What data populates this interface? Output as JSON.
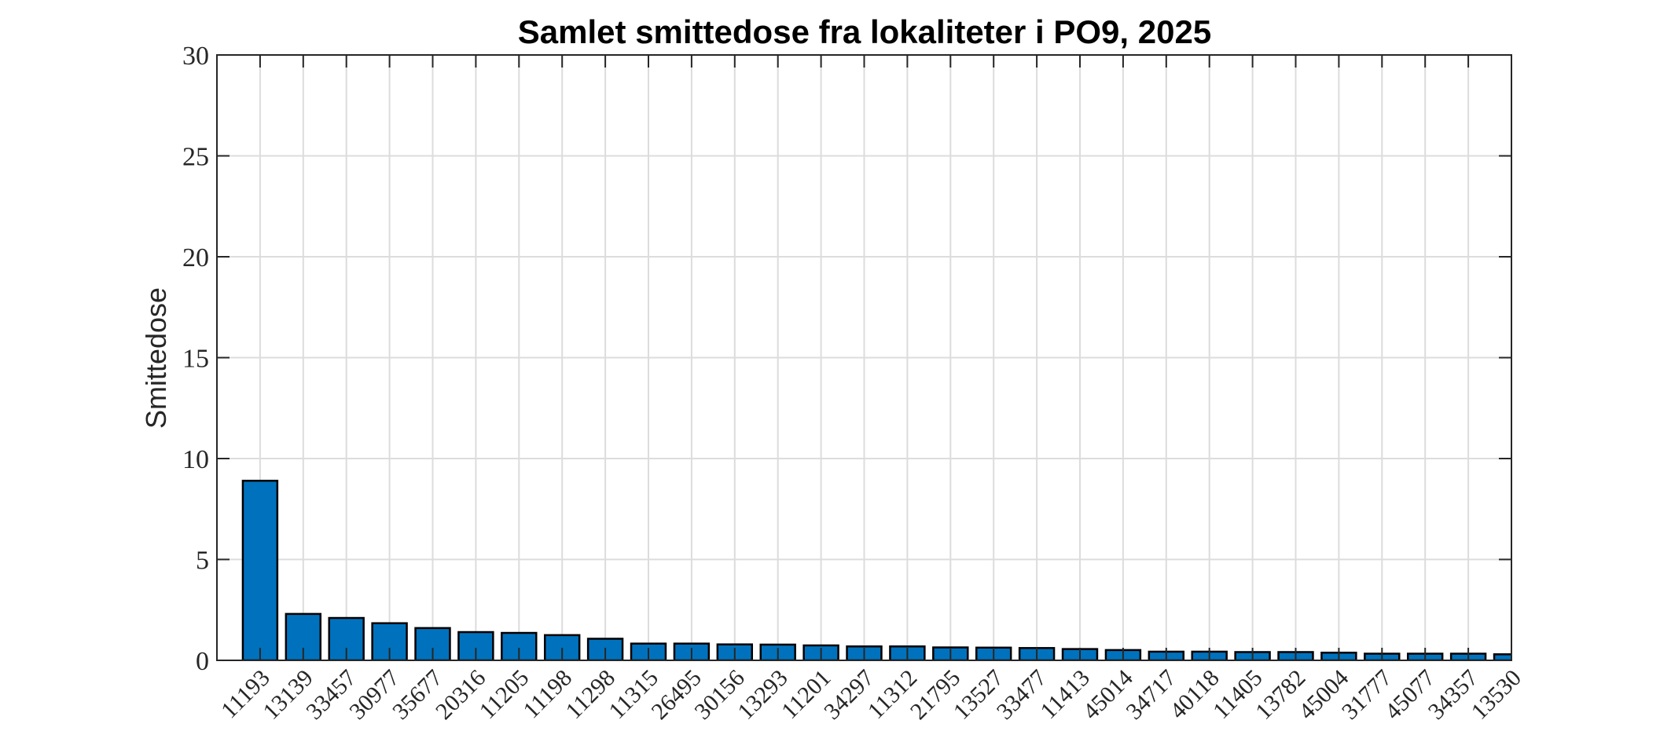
{
  "chart_data": {
    "type": "bar",
    "title": "Samlet smittedose fra lokaliteter i PO9, 2025",
    "xlabel": "",
    "ylabel": "Smittedose",
    "ylim": [
      0,
      30
    ],
    "xlim": [
      0,
      30
    ],
    "yticks": [
      0,
      5,
      10,
      15,
      20,
      25,
      30
    ],
    "grid": true,
    "legend": null,
    "bar_color": "#0072BD",
    "edge_color": "#000000",
    "categories": [
      "11193",
      "13139",
      "33457",
      "30977",
      "35677",
      "20316",
      "11205",
      "11198",
      "11298",
      "11315",
      "26495",
      "30156",
      "13293",
      "11201",
      "34297",
      "11312",
      "21795",
      "13527",
      "33477",
      "11413",
      "45014",
      "34717",
      "40118",
      "11405",
      "13782",
      "45004",
      "31777",
      "45077",
      "34357",
      "13530"
    ],
    "values": [
      8.9,
      2.3,
      2.1,
      1.84,
      1.6,
      1.4,
      1.36,
      1.25,
      1.07,
      0.83,
      0.83,
      0.79,
      0.78,
      0.74,
      0.69,
      0.69,
      0.64,
      0.63,
      0.61,
      0.56,
      0.51,
      0.43,
      0.43,
      0.41,
      0.41,
      0.38,
      0.33,
      0.33,
      0.33,
      0.3
    ]
  }
}
